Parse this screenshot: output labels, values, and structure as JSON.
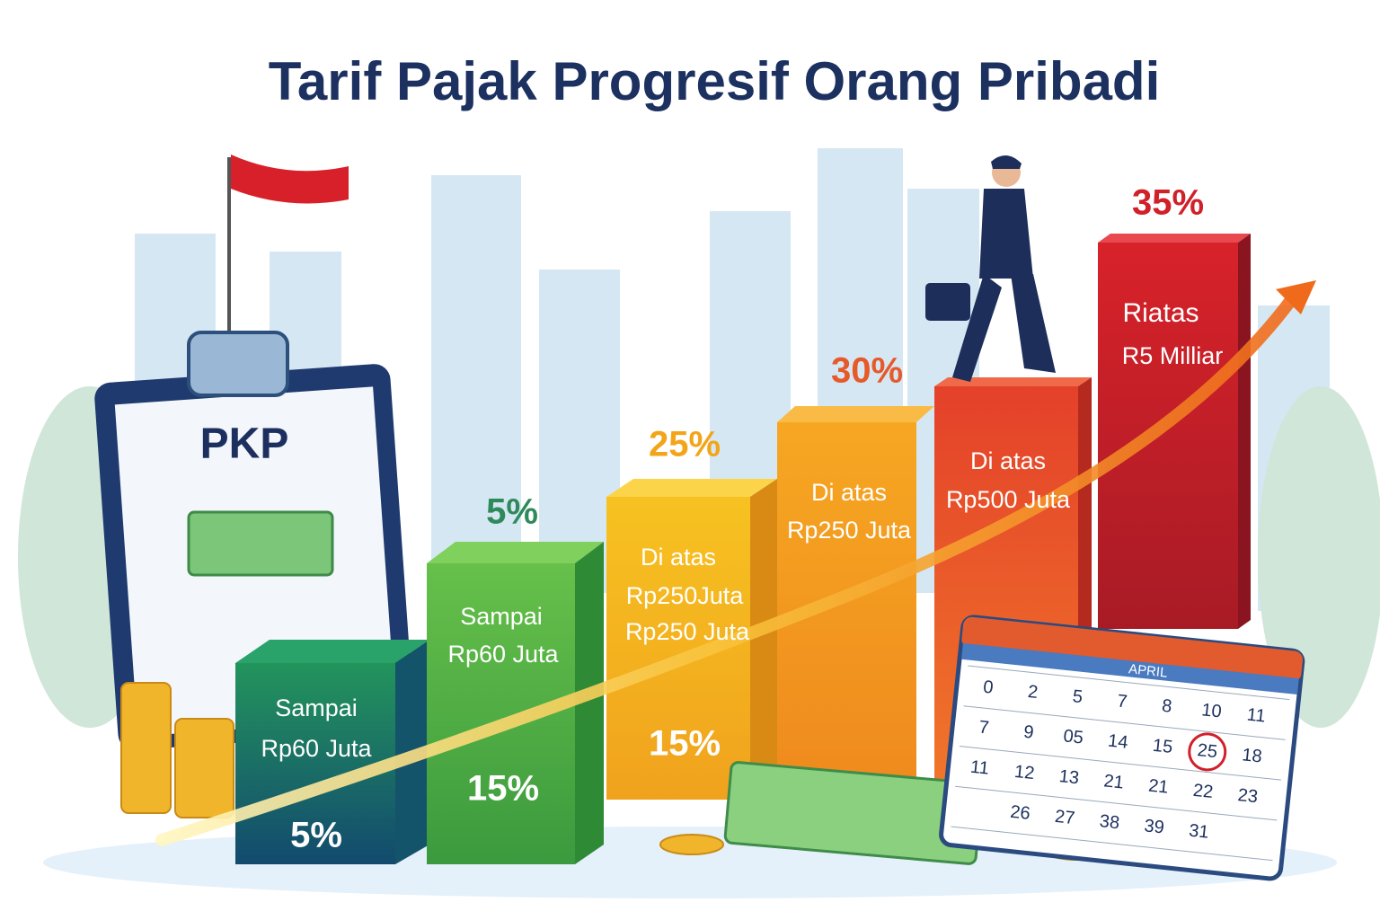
{
  "title": "Tarif Pajak Progresif Orang Pribadi",
  "clipboard": {
    "label": "PKP"
  },
  "steps": [
    {
      "lines": [
        "Sampai",
        "Rp60 Juta"
      ],
      "rate": "5%"
    },
    {
      "header": "5%",
      "lines": [
        "Sampai",
        "Rp60 Juta"
      ],
      "rate": "15%"
    },
    {
      "header": "25%",
      "lines": [
        "Di atas",
        "Rp250Juta",
        "Rp250 Juta"
      ],
      "rate": "15%"
    },
    {
      "header": "30%",
      "lines": [
        "Di atas",
        "Rp250 Juta"
      ]
    },
    {
      "lines": [
        "Di atas",
        "Rp500 Juta"
      ]
    },
    {
      "header": "35%",
      "lines": [
        "Riatas",
        "R5 Milliar"
      ]
    }
  ],
  "calendar": {
    "month": "APRIL",
    "rows": [
      [
        "0",
        "2",
        "5",
        "7",
        "8",
        "10",
        "11"
      ],
      [
        "7",
        "9",
        "05",
        "14",
        "15",
        "25",
        "18"
      ],
      [
        "11",
        "12",
        "13",
        "21",
        "21",
        "22",
        "23"
      ],
      [
        "26",
        "27",
        "38",
        "39",
        "31"
      ]
    ]
  }
}
